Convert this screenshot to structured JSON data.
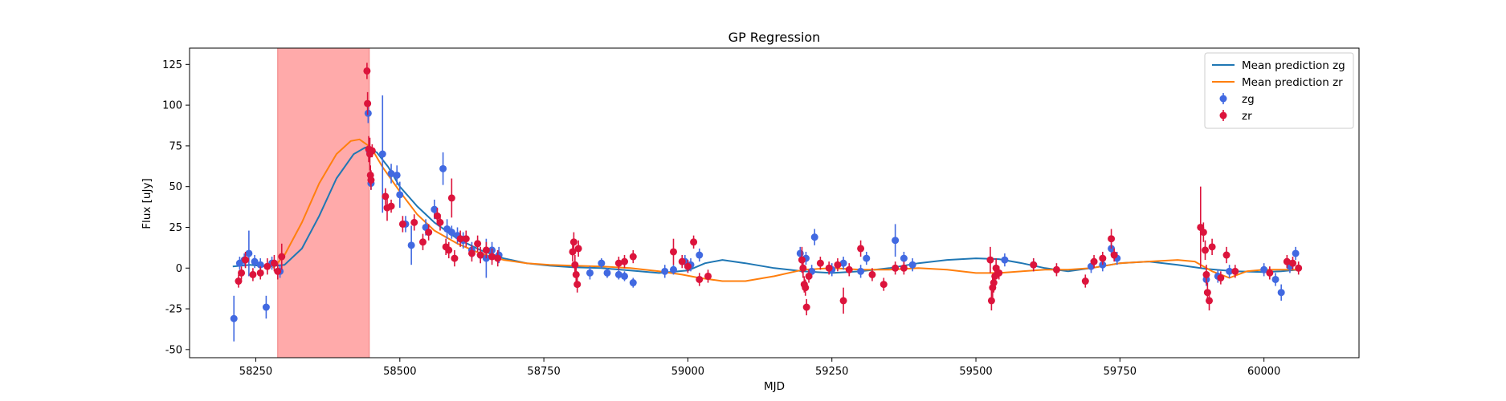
{
  "chart_data": {
    "type": "scatter",
    "title": "GP Regression",
    "xlabel": "MJD",
    "ylabel": "Flux [uJy]",
    "xlim": [
      58135,
      60165
    ],
    "ylim": [
      -55,
      135
    ],
    "xticks": [
      58250,
      58500,
      58750,
      59000,
      59250,
      59500,
      59750,
      60000
    ],
    "yticks": [
      -50,
      -25,
      0,
      25,
      50,
      75,
      100,
      125
    ],
    "legend_position": "top-right",
    "shaded_region": {
      "x0": 58288,
      "x1": 58447,
      "color": "#ffaaaa"
    },
    "colors": {
      "zg_line": "#1f77b4",
      "zr_line": "#ff7f0e",
      "zg_points": "#4169e1",
      "zr_points": "#dc143c"
    },
    "legend": [
      {
        "label": "Mean prediction zg",
        "kind": "line",
        "color": "#1f77b4"
      },
      {
        "label": "Mean prediction zr",
        "kind": "line",
        "color": "#ff7f0e"
      },
      {
        "label": "zg",
        "kind": "marker",
        "color": "#4169e1"
      },
      {
        "label": "zr",
        "kind": "marker",
        "color": "#dc143c"
      }
    ],
    "lines": [
      {
        "name": "Mean prediction zg",
        "color": "#1f77b4",
        "points": [
          [
            58210,
            1
          ],
          [
            58240,
            2
          ],
          [
            58270,
            1
          ],
          [
            58300,
            2
          ],
          [
            58330,
            12
          ],
          [
            58360,
            32
          ],
          [
            58390,
            55
          ],
          [
            58420,
            70
          ],
          [
            58440,
            74
          ],
          [
            58460,
            71
          ],
          [
            58480,
            62
          ],
          [
            58500,
            50
          ],
          [
            58530,
            38
          ],
          [
            58560,
            28
          ],
          [
            58600,
            18
          ],
          [
            58640,
            11
          ],
          [
            58680,
            6
          ],
          [
            58720,
            3
          ],
          [
            58760,
            1.5
          ],
          [
            58800,
            0.5
          ],
          [
            58850,
            0
          ],
          [
            58900,
            -1.5
          ],
          [
            58950,
            -3
          ],
          [
            59000,
            -1.5
          ],
          [
            59030,
            3
          ],
          [
            59060,
            5
          ],
          [
            59100,
            3
          ],
          [
            59150,
            0
          ],
          [
            59200,
            -2
          ],
          [
            59250,
            -3
          ],
          [
            59300,
            -2
          ],
          [
            59350,
            0
          ],
          [
            59400,
            3
          ],
          [
            59450,
            5
          ],
          [
            59500,
            6
          ],
          [
            59540,
            5.5
          ],
          [
            59580,
            3
          ],
          [
            59620,
            0
          ],
          [
            59660,
            -2
          ],
          [
            59700,
            0
          ],
          [
            59750,
            3
          ],
          [
            59800,
            4
          ],
          [
            59850,
            2
          ],
          [
            59900,
            -0.5
          ],
          [
            59950,
            -2
          ],
          [
            60000,
            -2.5
          ],
          [
            60030,
            -2
          ],
          [
            60060,
            -1
          ]
        ]
      },
      {
        "name": "Mean prediction zr",
        "color": "#ff7f0e",
        "points": [
          [
            58280,
            0
          ],
          [
            58300,
            8
          ],
          [
            58330,
            28
          ],
          [
            58360,
            52
          ],
          [
            58390,
            70
          ],
          [
            58415,
            78
          ],
          [
            58430,
            79
          ],
          [
            58450,
            74
          ],
          [
            58470,
            62
          ],
          [
            58500,
            47
          ],
          [
            58530,
            33
          ],
          [
            58560,
            23
          ],
          [
            58600,
            15
          ],
          [
            58640,
            9
          ],
          [
            58680,
            5
          ],
          [
            58720,
            3
          ],
          [
            58760,
            2
          ],
          [
            58800,
            1.5
          ],
          [
            58850,
            1
          ],
          [
            58900,
            0
          ],
          [
            58950,
            -2
          ],
          [
            58990,
            -4
          ],
          [
            59020,
            -6
          ],
          [
            59060,
            -8
          ],
          [
            59100,
            -8
          ],
          [
            59150,
            -5
          ],
          [
            59200,
            -1
          ],
          [
            59250,
            0
          ],
          [
            59300,
            -1
          ],
          [
            59350,
            -1
          ],
          [
            59400,
            0
          ],
          [
            59450,
            -1
          ],
          [
            59500,
            -3
          ],
          [
            59540,
            -3
          ],
          [
            59580,
            -2
          ],
          [
            59620,
            -1
          ],
          [
            59660,
            -1
          ],
          [
            59700,
            0
          ],
          [
            59750,
            3
          ],
          [
            59800,
            4
          ],
          [
            59850,
            5
          ],
          [
            59880,
            4
          ],
          [
            59910,
            -2
          ],
          [
            59940,
            -6
          ],
          [
            59970,
            -2
          ],
          [
            60000,
            -1
          ],
          [
            60030,
            -1
          ],
          [
            60060,
            -1
          ]
        ]
      }
    ],
    "series": [
      {
        "name": "zg",
        "color": "#4169e1",
        "points": [
          [
            58212,
            -31,
            14
          ],
          [
            58222,
            3,
            4
          ],
          [
            58230,
            5,
            4
          ],
          [
            58238,
            9,
            14
          ],
          [
            58248,
            4,
            4
          ],
          [
            58258,
            2,
            4
          ],
          [
            58268,
            -24,
            7
          ],
          [
            58278,
            3,
            4
          ],
          [
            58292,
            -2,
            4
          ],
          [
            58445,
            95,
            6
          ],
          [
            58447,
            72,
            5
          ],
          [
            58450,
            52,
            4
          ],
          [
            58470,
            70,
            36
          ],
          [
            58485,
            58,
            6
          ],
          [
            58495,
            57,
            6
          ],
          [
            58500,
            45,
            8
          ],
          [
            58510,
            27,
            5
          ],
          [
            58520,
            14,
            12
          ],
          [
            58545,
            25,
            5
          ],
          [
            58560,
            36,
            6
          ],
          [
            58575,
            61,
            10
          ],
          [
            58582,
            24,
            6
          ],
          [
            58590,
            22,
            4
          ],
          [
            58600,
            20,
            5
          ],
          [
            58610,
            17,
            5
          ],
          [
            58625,
            11,
            5
          ],
          [
            58640,
            8,
            5
          ],
          [
            58650,
            6,
            12
          ],
          [
            58660,
            11,
            5
          ],
          [
            58672,
            8,
            5
          ],
          [
            58830,
            -3,
            4
          ],
          [
            58850,
            3,
            3
          ],
          [
            58860,
            -3,
            3
          ],
          [
            58880,
            -4,
            3
          ],
          [
            58890,
            -5,
            3
          ],
          [
            58905,
            -9,
            3
          ],
          [
            58960,
            -2,
            4
          ],
          [
            58975,
            -1,
            3
          ],
          [
            58995,
            4,
            4
          ],
          [
            59005,
            2,
            4
          ],
          [
            59020,
            8,
            4
          ],
          [
            59195,
            9,
            4
          ],
          [
            59205,
            6,
            4
          ],
          [
            59215,
            -2,
            4
          ],
          [
            59220,
            19,
            5
          ],
          [
            59250,
            -1,
            4
          ],
          [
            59270,
            3,
            4
          ],
          [
            59300,
            -2,
            4
          ],
          [
            59310,
            6,
            4
          ],
          [
            59360,
            17,
            10
          ],
          [
            59375,
            6,
            4
          ],
          [
            59390,
            2,
            4
          ],
          [
            59550,
            5,
            4
          ],
          [
            59600,
            2,
            4
          ],
          [
            59700,
            1,
            4
          ],
          [
            59720,
            2,
            4
          ],
          [
            59735,
            12,
            4
          ],
          [
            59745,
            6,
            4
          ],
          [
            59900,
            -7,
            4
          ],
          [
            59920,
            -5,
            4
          ],
          [
            59940,
            -2,
            4
          ],
          [
            60000,
            -1,
            4
          ],
          [
            60020,
            -7,
            4
          ],
          [
            60030,
            -15,
            5
          ],
          [
            60045,
            1,
            4
          ],
          [
            60055,
            9,
            4
          ]
        ]
      },
      {
        "name": "zr",
        "color": "#dc143c",
        "points": [
          [
            58220,
            -8,
            4
          ],
          [
            58225,
            -3,
            4
          ],
          [
            58232,
            5,
            5
          ],
          [
            58245,
            -4,
            4
          ],
          [
            58258,
            -3,
            4
          ],
          [
            58270,
            1,
            5
          ],
          [
            58282,
            3,
            5
          ],
          [
            58288,
            -2,
            5
          ],
          [
            58295,
            7,
            8
          ],
          [
            58443,
            121,
            5
          ],
          [
            58444,
            101,
            7
          ],
          [
            58446,
            73,
            8
          ],
          [
            58448,
            70,
            10
          ],
          [
            58449,
            57,
            6
          ],
          [
            58450,
            54,
            6
          ],
          [
            58452,
            72,
            4
          ],
          [
            58475,
            44,
            5
          ],
          [
            58478,
            37,
            8
          ],
          [
            58485,
            38,
            4
          ],
          [
            58505,
            27,
            5
          ],
          [
            58525,
            28,
            5
          ],
          [
            58540,
            16,
            5
          ],
          [
            58550,
            22,
            5
          ],
          [
            58565,
            32,
            5
          ],
          [
            58570,
            28,
            5
          ],
          [
            58580,
            13,
            5
          ],
          [
            58585,
            11,
            5
          ],
          [
            58590,
            43,
            12
          ],
          [
            58595,
            6,
            5
          ],
          [
            58605,
            18,
            5
          ],
          [
            58615,
            18,
            5
          ],
          [
            58625,
            9,
            5
          ],
          [
            58635,
            15,
            5
          ],
          [
            58640,
            8,
            5
          ],
          [
            58650,
            11,
            5
          ],
          [
            58660,
            7,
            5
          ],
          [
            58670,
            6,
            5
          ],
          [
            58800,
            10,
            6
          ],
          [
            58802,
            16,
            6
          ],
          [
            58804,
            2,
            6
          ],
          [
            58806,
            -4,
            6
          ],
          [
            58808,
            -10,
            5
          ],
          [
            58810,
            12,
            5
          ],
          [
            58880,
            3,
            4
          ],
          [
            58890,
            4,
            4
          ],
          [
            58905,
            7,
            4
          ],
          [
            58975,
            10,
            8
          ],
          [
            58990,
            4,
            4
          ],
          [
            59000,
            1,
            4
          ],
          [
            59010,
            16,
            4
          ],
          [
            59020,
            -7,
            4
          ],
          [
            59035,
            -5,
            4
          ],
          [
            59198,
            5,
            8
          ],
          [
            59200,
            0,
            6
          ],
          [
            59202,
            -10,
            5
          ],
          [
            59204,
            -12,
            5
          ],
          [
            59206,
            -24,
            5
          ],
          [
            59210,
            -5,
            4
          ],
          [
            59230,
            3,
            4
          ],
          [
            59245,
            0,
            4
          ],
          [
            59260,
            2,
            4
          ],
          [
            59270,
            -20,
            8
          ],
          [
            59280,
            -1,
            4
          ],
          [
            59300,
            12,
            5
          ],
          [
            59320,
            -4,
            4
          ],
          [
            59340,
            -10,
            4
          ],
          [
            59360,
            0,
            4
          ],
          [
            59375,
            0,
            4
          ],
          [
            59525,
            5,
            8
          ],
          [
            59527,
            -20,
            6
          ],
          [
            59529,
            -12,
            6
          ],
          [
            59531,
            -9,
            6
          ],
          [
            59533,
            -5,
            6
          ],
          [
            59535,
            0,
            6
          ],
          [
            59540,
            -3,
            4
          ],
          [
            59600,
            2,
            4
          ],
          [
            59640,
            -1,
            4
          ],
          [
            59690,
            -8,
            4
          ],
          [
            59705,
            4,
            4
          ],
          [
            59720,
            6,
            4
          ],
          [
            59735,
            18,
            6
          ],
          [
            59740,
            8,
            4
          ],
          [
            59890,
            25,
            25
          ],
          [
            59895,
            22,
            6
          ],
          [
            59898,
            11,
            6
          ],
          [
            59900,
            -4,
            6
          ],
          [
            59902,
            -15,
            6
          ],
          [
            59905,
            -20,
            6
          ],
          [
            59910,
            13,
            5
          ],
          [
            59925,
            -6,
            4
          ],
          [
            59935,
            8,
            5
          ],
          [
            59950,
            -2,
            4
          ],
          [
            60010,
            -3,
            4
          ],
          [
            60040,
            4,
            4
          ],
          [
            60050,
            3,
            4
          ],
          [
            60060,
            0,
            4
          ]
        ]
      }
    ]
  }
}
